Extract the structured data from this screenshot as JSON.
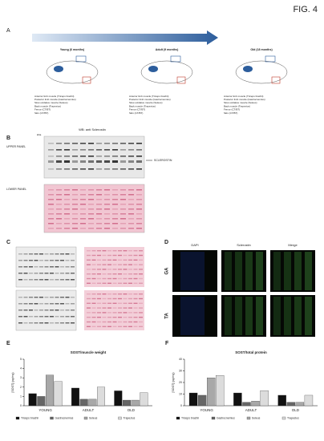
{
  "header": {
    "fig_label": "FIG. 4"
  },
  "panel_a": {
    "label": "A",
    "groups": [
      {
        "title": "Young (6 months)"
      },
      {
        "title": "Adult (9 months)"
      },
      {
        "title": "Old (18 months)"
      }
    ],
    "muscles": [
      "Anterior limb muscle (Triceps brachii)",
      "Posterior limb muscle (Gastrocnemius)",
      "Slow oxidative muscle (Soleus)",
      "Back muscle (Trapezius)",
      "Femur (CT/BT)",
      "Skin (CT/BT)"
    ]
  },
  "panel_b": {
    "label": "B",
    "title": "WB: anti Sclerostin",
    "upper": "UPPER PANEL",
    "lower": "LOWER PANEL",
    "target": "SCLEROSTIN",
    "kda": "kDa"
  },
  "panel_c": {
    "label": "C"
  },
  "panel_d": {
    "label": "D",
    "columns": [
      "DAPI",
      "Sclerostin",
      "Merge"
    ],
    "rows": [
      "GA",
      "TA"
    ]
  },
  "panel_e": {
    "label": "E"
  },
  "panel_f": {
    "label": "F"
  },
  "chart_data": [
    {
      "type": "bar",
      "title": "SOST/muscle weight",
      "y_label": "[SOST] (pg/mg)",
      "categories": [
        "YOUNG",
        "ADULT",
        "OLD"
      ],
      "series": [
        {
          "name": "Triceps brachii",
          "color": "#111111",
          "values": [
            1.3,
            1.9,
            1.6
          ]
        },
        {
          "name": "Gastrocnemius",
          "color": "#666666",
          "values": [
            1.0,
            0.7,
            0.6
          ]
        },
        {
          "name": "Soleus",
          "color": "#a8a8a8",
          "values": [
            3.3,
            0.7,
            0.6
          ]
        },
        {
          "name": "Trapezius",
          "color": "#dcdcdc",
          "values": [
            2.6,
            2.0,
            1.4
          ]
        }
      ],
      "ylim": [
        0,
        5
      ],
      "yticks": [
        0,
        1,
        2,
        3,
        4,
        5
      ]
    },
    {
      "type": "bar",
      "title": "SOST/total protein",
      "y_label": "[SOST] (pg/mg)",
      "categories": [
        "YOUNG",
        "ADULT",
        "OLD"
      ],
      "series": [
        {
          "name": "Triceps brachii",
          "color": "#111111",
          "values": [
            11,
            11,
            9
          ]
        },
        {
          "name": "Gastrocnemius",
          "color": "#666666",
          "values": [
            9,
            3,
            3
          ]
        },
        {
          "name": "Soleus",
          "color": "#a8a8a8",
          "values": [
            24,
            4,
            3
          ]
        },
        {
          "name": "Trapezius",
          "color": "#dcdcdc",
          "values": [
            26,
            13,
            9
          ]
        }
      ],
      "ylim": [
        0,
        40
      ],
      "yticks": [
        0,
        10,
        20,
        30,
        40
      ]
    }
  ]
}
